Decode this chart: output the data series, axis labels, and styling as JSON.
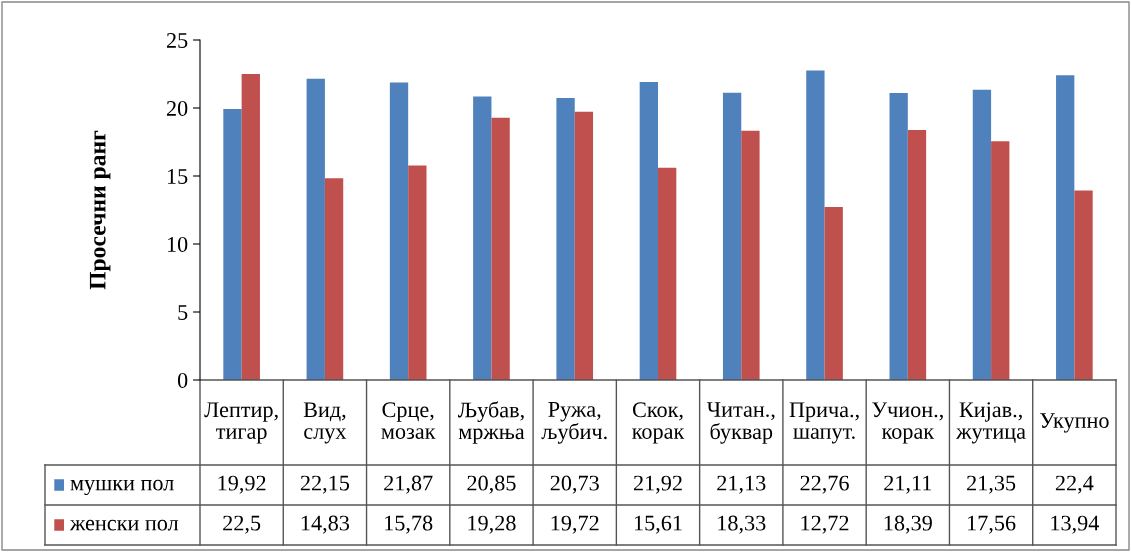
{
  "chart_data": {
    "type": "bar",
    "ylabel": "Просечни ранг",
    "categories": [
      "Лептир,\nтигар",
      "Вид,\nслух",
      "Срце,\nмозак",
      "Љубав,\nмржња",
      "Ружа,\nљубич.",
      "Скок,\nкорак",
      "Читан.,\nбуквар",
      "Прича.,\nшапут.",
      "Учион.,\nкорак",
      "Кијав.,\nжутица",
      "Укупно"
    ],
    "series": [
      {
        "name": "мушки пол",
        "color": "#4f81bd",
        "values": [
          19.92,
          22.15,
          21.87,
          20.85,
          20.73,
          21.92,
          21.13,
          22.76,
          21.11,
          21.35,
          22.4
        ],
        "value_labels": [
          "19,92",
          "22,15",
          "21,87",
          "20,85",
          "20,73",
          "21,92",
          "21,13",
          "22,76",
          "21,11",
          "21,35",
          "22,4"
        ]
      },
      {
        "name": "женски пол",
        "color": "#c0504d",
        "values": [
          22.5,
          14.83,
          15.78,
          19.28,
          19.72,
          15.61,
          18.33,
          12.72,
          18.39,
          17.56,
          13.94
        ],
        "value_labels": [
          "22,5",
          "14,83",
          "15,78",
          "19,28",
          "19,72",
          "15,61",
          "18,33",
          "12,72",
          "18,39",
          "17,56",
          "13,94"
        ]
      }
    ],
    "ylim": [
      0,
      25
    ],
    "yticks": [
      0,
      5,
      10,
      15,
      20,
      25
    ],
    "grid": false,
    "legend": "bottom left"
  }
}
